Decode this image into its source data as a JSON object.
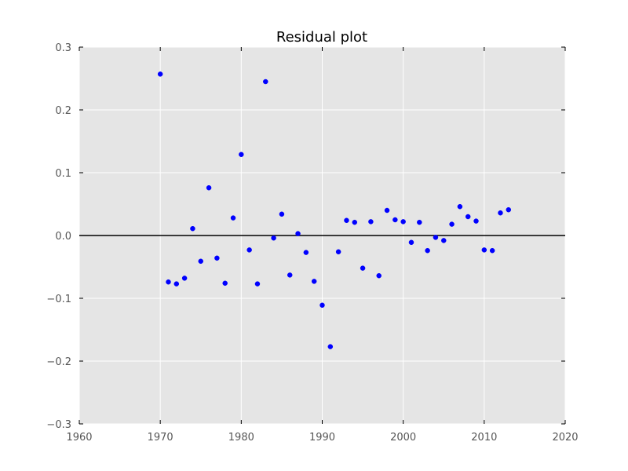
{
  "chart_data": {
    "type": "scatter",
    "title": "Residual plot",
    "xlabel": "",
    "ylabel": "",
    "xlim": [
      1960,
      2020
    ],
    "ylim": [
      -0.3,
      0.3
    ],
    "xticks": [
      1960,
      1970,
      1980,
      1990,
      2000,
      2010,
      2020
    ],
    "yticks": [
      -0.3,
      -0.2,
      -0.1,
      0.0,
      0.1,
      0.2,
      0.3
    ],
    "ytick_labels": [
      "−0.3",
      "−0.2",
      "−0.1",
      "0.0",
      "0.1",
      "0.2",
      "0.3"
    ],
    "grid": true,
    "reference_line_y": 0,
    "colors": {
      "background": "#e5e5e5",
      "points": "#0000ff",
      "reference_line": "#000000"
    },
    "points": [
      {
        "x": 1970,
        "y": 0.257
      },
      {
        "x": 1971,
        "y": -0.074
      },
      {
        "x": 1972,
        "y": -0.077
      },
      {
        "x": 1973,
        "y": -0.068
      },
      {
        "x": 1974,
        "y": 0.011
      },
      {
        "x": 1975,
        "y": -0.041
      },
      {
        "x": 1976,
        "y": 0.076
      },
      {
        "x": 1977,
        "y": -0.036
      },
      {
        "x": 1978,
        "y": -0.076
      },
      {
        "x": 1979,
        "y": 0.028
      },
      {
        "x": 1980,
        "y": 0.129
      },
      {
        "x": 1981,
        "y": -0.023
      },
      {
        "x": 1982,
        "y": -0.077
      },
      {
        "x": 1983,
        "y": 0.245
      },
      {
        "x": 1984,
        "y": -0.004
      },
      {
        "x": 1985,
        "y": 0.034
      },
      {
        "x": 1986,
        "y": -0.063
      },
      {
        "x": 1987,
        "y": 0.003
      },
      {
        "x": 1988,
        "y": -0.027
      },
      {
        "x": 1989,
        "y": -0.073
      },
      {
        "x": 1990,
        "y": -0.111
      },
      {
        "x": 1991,
        "y": -0.177
      },
      {
        "x": 1992,
        "y": -0.026
      },
      {
        "x": 1993,
        "y": 0.024
      },
      {
        "x": 1994,
        "y": 0.021
      },
      {
        "x": 1995,
        "y": -0.052
      },
      {
        "x": 1996,
        "y": 0.022
      },
      {
        "x": 1997,
        "y": -0.064
      },
      {
        "x": 1998,
        "y": 0.04
      },
      {
        "x": 1999,
        "y": 0.025
      },
      {
        "x": 2000,
        "y": 0.022
      },
      {
        "x": 2001,
        "y": -0.011
      },
      {
        "x": 2002,
        "y": 0.021
      },
      {
        "x": 2003,
        "y": -0.024
      },
      {
        "x": 2004,
        "y": -0.003
      },
      {
        "x": 2005,
        "y": -0.008
      },
      {
        "x": 2006,
        "y": 0.018
      },
      {
        "x": 2007,
        "y": 0.046
      },
      {
        "x": 2008,
        "y": 0.03
      },
      {
        "x": 2009,
        "y": 0.023
      },
      {
        "x": 2010,
        "y": -0.023
      },
      {
        "x": 2011,
        "y": -0.024
      },
      {
        "x": 2012,
        "y": 0.036
      },
      {
        "x": 2013,
        "y": 0.041
      }
    ]
  }
}
